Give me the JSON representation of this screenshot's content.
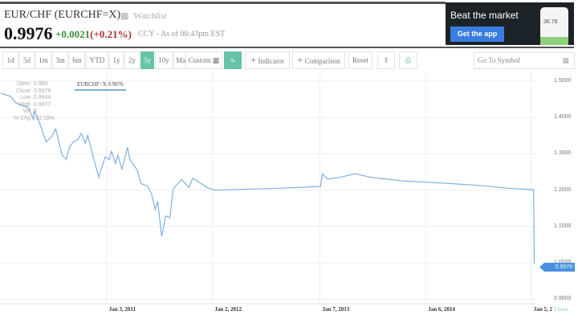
{
  "header": {
    "title": "EUR/CHF (EURCHF=X)",
    "watchlist_label": "Watchlist",
    "price": "0.9976",
    "change": "+0.0021",
    "change_pct": "(+0.21%)",
    "as_of": "CCY - As of 06:43pm EST"
  },
  "ad": {
    "headline": "Beat the market",
    "button": "Get the app",
    "phone_value": "36.78"
  },
  "toolbar": {
    "ranges": [
      "1d",
      "5d",
      "1m",
      "3m",
      "6m",
      "YTD",
      "1y",
      "2y",
      "5y",
      "10y",
      "Max"
    ],
    "active_range": "5y",
    "custom": "Custom",
    "indicator": "Indicator",
    "comparison": "Comparison",
    "reset": "Reset",
    "symbol_placeholder": "Go To Symbol"
  },
  "ohlc": {
    "labels": [
      "Open",
      "Close",
      "Low",
      "High",
      "Vol",
      "% Chg"
    ],
    "values": [
      "0.995",
      "0.9976",
      "0.9944",
      "0.9977",
      "0",
      "-32.18%"
    ]
  },
  "legend": "EURCHF=X 0.9976",
  "scale_label": "Linear",
  "price_tag": "0.9976",
  "colors": {
    "line": "#7fb0e0",
    "accent": "#66c2a8",
    "tag": "#4a90e2",
    "up": "#3c8c3c",
    "down": "#aa3333"
  },
  "chart_data": {
    "type": "line",
    "y_ticks": [
      "1.5000",
      "1.4000",
      "1.3000",
      "1.2000",
      "1.1000",
      "1.0000",
      "0.9000"
    ],
    "ylim": [
      0.9,
      1.5
    ],
    "x_ticks": [
      "Jan 3, 2011",
      "Jan 2, 2012",
      "Jan 7, 2013",
      "Jan 6, 2014",
      "Jan 5, 2"
    ],
    "x_tick_dates": [
      "2011-01-03",
      "2012-01-02",
      "2013-01-07",
      "2014-01-06",
      "2015-01-05"
    ],
    "xlim": [
      "2010-01-01",
      "2015-01-22"
    ],
    "grid": true,
    "series": [
      {
        "name": "EURCHF=X",
        "points": [
          [
            "2010-01-04",
            1.467
          ],
          [
            "2010-02-06",
            1.458
          ],
          [
            "2010-02-25",
            1.44
          ],
          [
            "2010-03-16",
            1.433
          ],
          [
            "2010-04-07",
            1.429
          ],
          [
            "2010-04-26",
            1.395
          ],
          [
            "2010-04-29",
            1.418
          ],
          [
            "2010-05-18",
            1.384
          ],
          [
            "2010-06-09",
            1.333
          ],
          [
            "2010-06-28",
            1.347
          ],
          [
            "2010-07-12",
            1.369
          ],
          [
            "2010-08-03",
            1.296
          ],
          [
            "2010-08-17",
            1.284
          ],
          [
            "2010-08-28",
            1.318
          ],
          [
            "2010-09-11",
            1.333
          ],
          [
            "2010-09-27",
            1.34
          ],
          [
            "2010-10-08",
            1.356
          ],
          [
            "2010-10-22",
            1.329
          ],
          [
            "2010-10-30",
            1.351
          ],
          [
            "2010-11-18",
            1.291
          ],
          [
            "2010-12-07",
            1.236
          ],
          [
            "2010-12-29",
            1.291
          ],
          [
            "2011-01-12",
            1.284
          ],
          [
            "2011-01-20",
            1.307
          ],
          [
            "2011-02-03",
            1.273
          ],
          [
            "2011-02-11",
            1.296
          ],
          [
            "2011-02-25",
            1.258
          ],
          [
            "2011-03-16",
            1.318
          ],
          [
            "2011-03-24",
            1.284
          ],
          [
            "2011-04-18",
            1.256
          ],
          [
            "2011-05-02",
            1.218
          ],
          [
            "2011-05-24",
            1.211
          ],
          [
            "2011-06-07",
            1.189
          ],
          [
            "2011-06-20",
            1.147
          ],
          [
            "2011-06-28",
            1.169
          ],
          [
            "2011-07-12",
            1.073
          ],
          [
            "2011-07-26",
            1.129
          ],
          [
            "2011-08-09",
            1.124
          ],
          [
            "2011-08-20",
            1.202
          ],
          [
            "2011-08-28",
            1.211
          ],
          [
            "2011-09-19",
            1.229
          ],
          [
            "2011-10-14",
            1.207
          ],
          [
            "2011-10-27",
            1.233
          ],
          [
            "2011-11-13",
            1.224
          ],
          [
            "2011-12-16",
            1.207
          ],
          [
            "2012-01-12",
            1.2
          ],
          [
            "2012-04-05",
            1.202
          ],
          [
            "2012-08-21",
            1.205
          ],
          [
            "2013-01-09",
            1.21
          ],
          [
            "2013-01-15",
            1.245
          ],
          [
            "2013-02-03",
            1.23
          ],
          [
            "2013-03-15",
            1.235
          ],
          [
            "2013-05-09",
            1.245
          ],
          [
            "2013-07-03",
            1.235
          ],
          [
            "2013-08-27",
            1.23
          ],
          [
            "2013-10-21",
            1.225
          ],
          [
            "2014-01-06",
            1.222
          ],
          [
            "2014-04-04",
            1.218
          ],
          [
            "2014-07-24",
            1.212
          ],
          [
            "2014-10-15",
            1.205
          ],
          [
            "2015-01-13",
            1.201
          ],
          [
            "2015-01-15",
            0.9976
          ]
        ]
      }
    ]
  }
}
